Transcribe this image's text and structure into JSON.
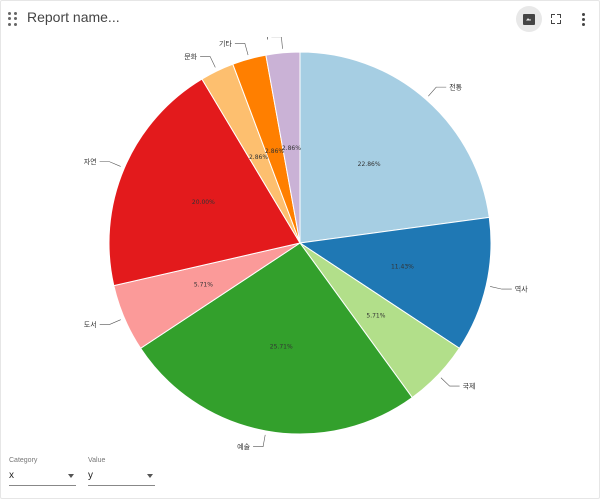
{
  "header": {
    "title": "Report name...",
    "icons": [
      "drag-handle-icon",
      "image-icon",
      "fullscreen-icon",
      "more-vert-icon"
    ]
  },
  "controls": {
    "category": {
      "label": "Category",
      "value": "x"
    },
    "value": {
      "label": "Value",
      "value": "y"
    }
  },
  "chart_data": {
    "type": "pie",
    "legend": "none",
    "slices": [
      {
        "name": "전통",
        "percent": 22.86,
        "label": "22.86%",
        "color": "#a6cee3"
      },
      {
        "name": "역사",
        "percent": 11.43,
        "label": "11.43%",
        "color": "#1f78b4"
      },
      {
        "name": "국제",
        "percent": 5.71,
        "label": "5.71%",
        "color": "#b2df8a"
      },
      {
        "name": "예술",
        "percent": 25.71,
        "label": "25.71%",
        "color": "#33a02c"
      },
      {
        "name": "도서",
        "percent": 5.71,
        "label": "5.71%",
        "color": "#fb9a99"
      },
      {
        "name": "자연",
        "percent": 20.0,
        "label": "20.00%",
        "color": "#e31a1c"
      },
      {
        "name": "문화",
        "percent": 2.86,
        "label": "2.86%",
        "color": "#fdbf6f"
      },
      {
        "name": "기타",
        "percent": 2.86,
        "label": "2.86%",
        "color": "#ff7f00"
      },
      {
        "name": "l",
        "percent": 2.86,
        "label": "2.86%",
        "color": "#cab2d6"
      }
    ]
  }
}
